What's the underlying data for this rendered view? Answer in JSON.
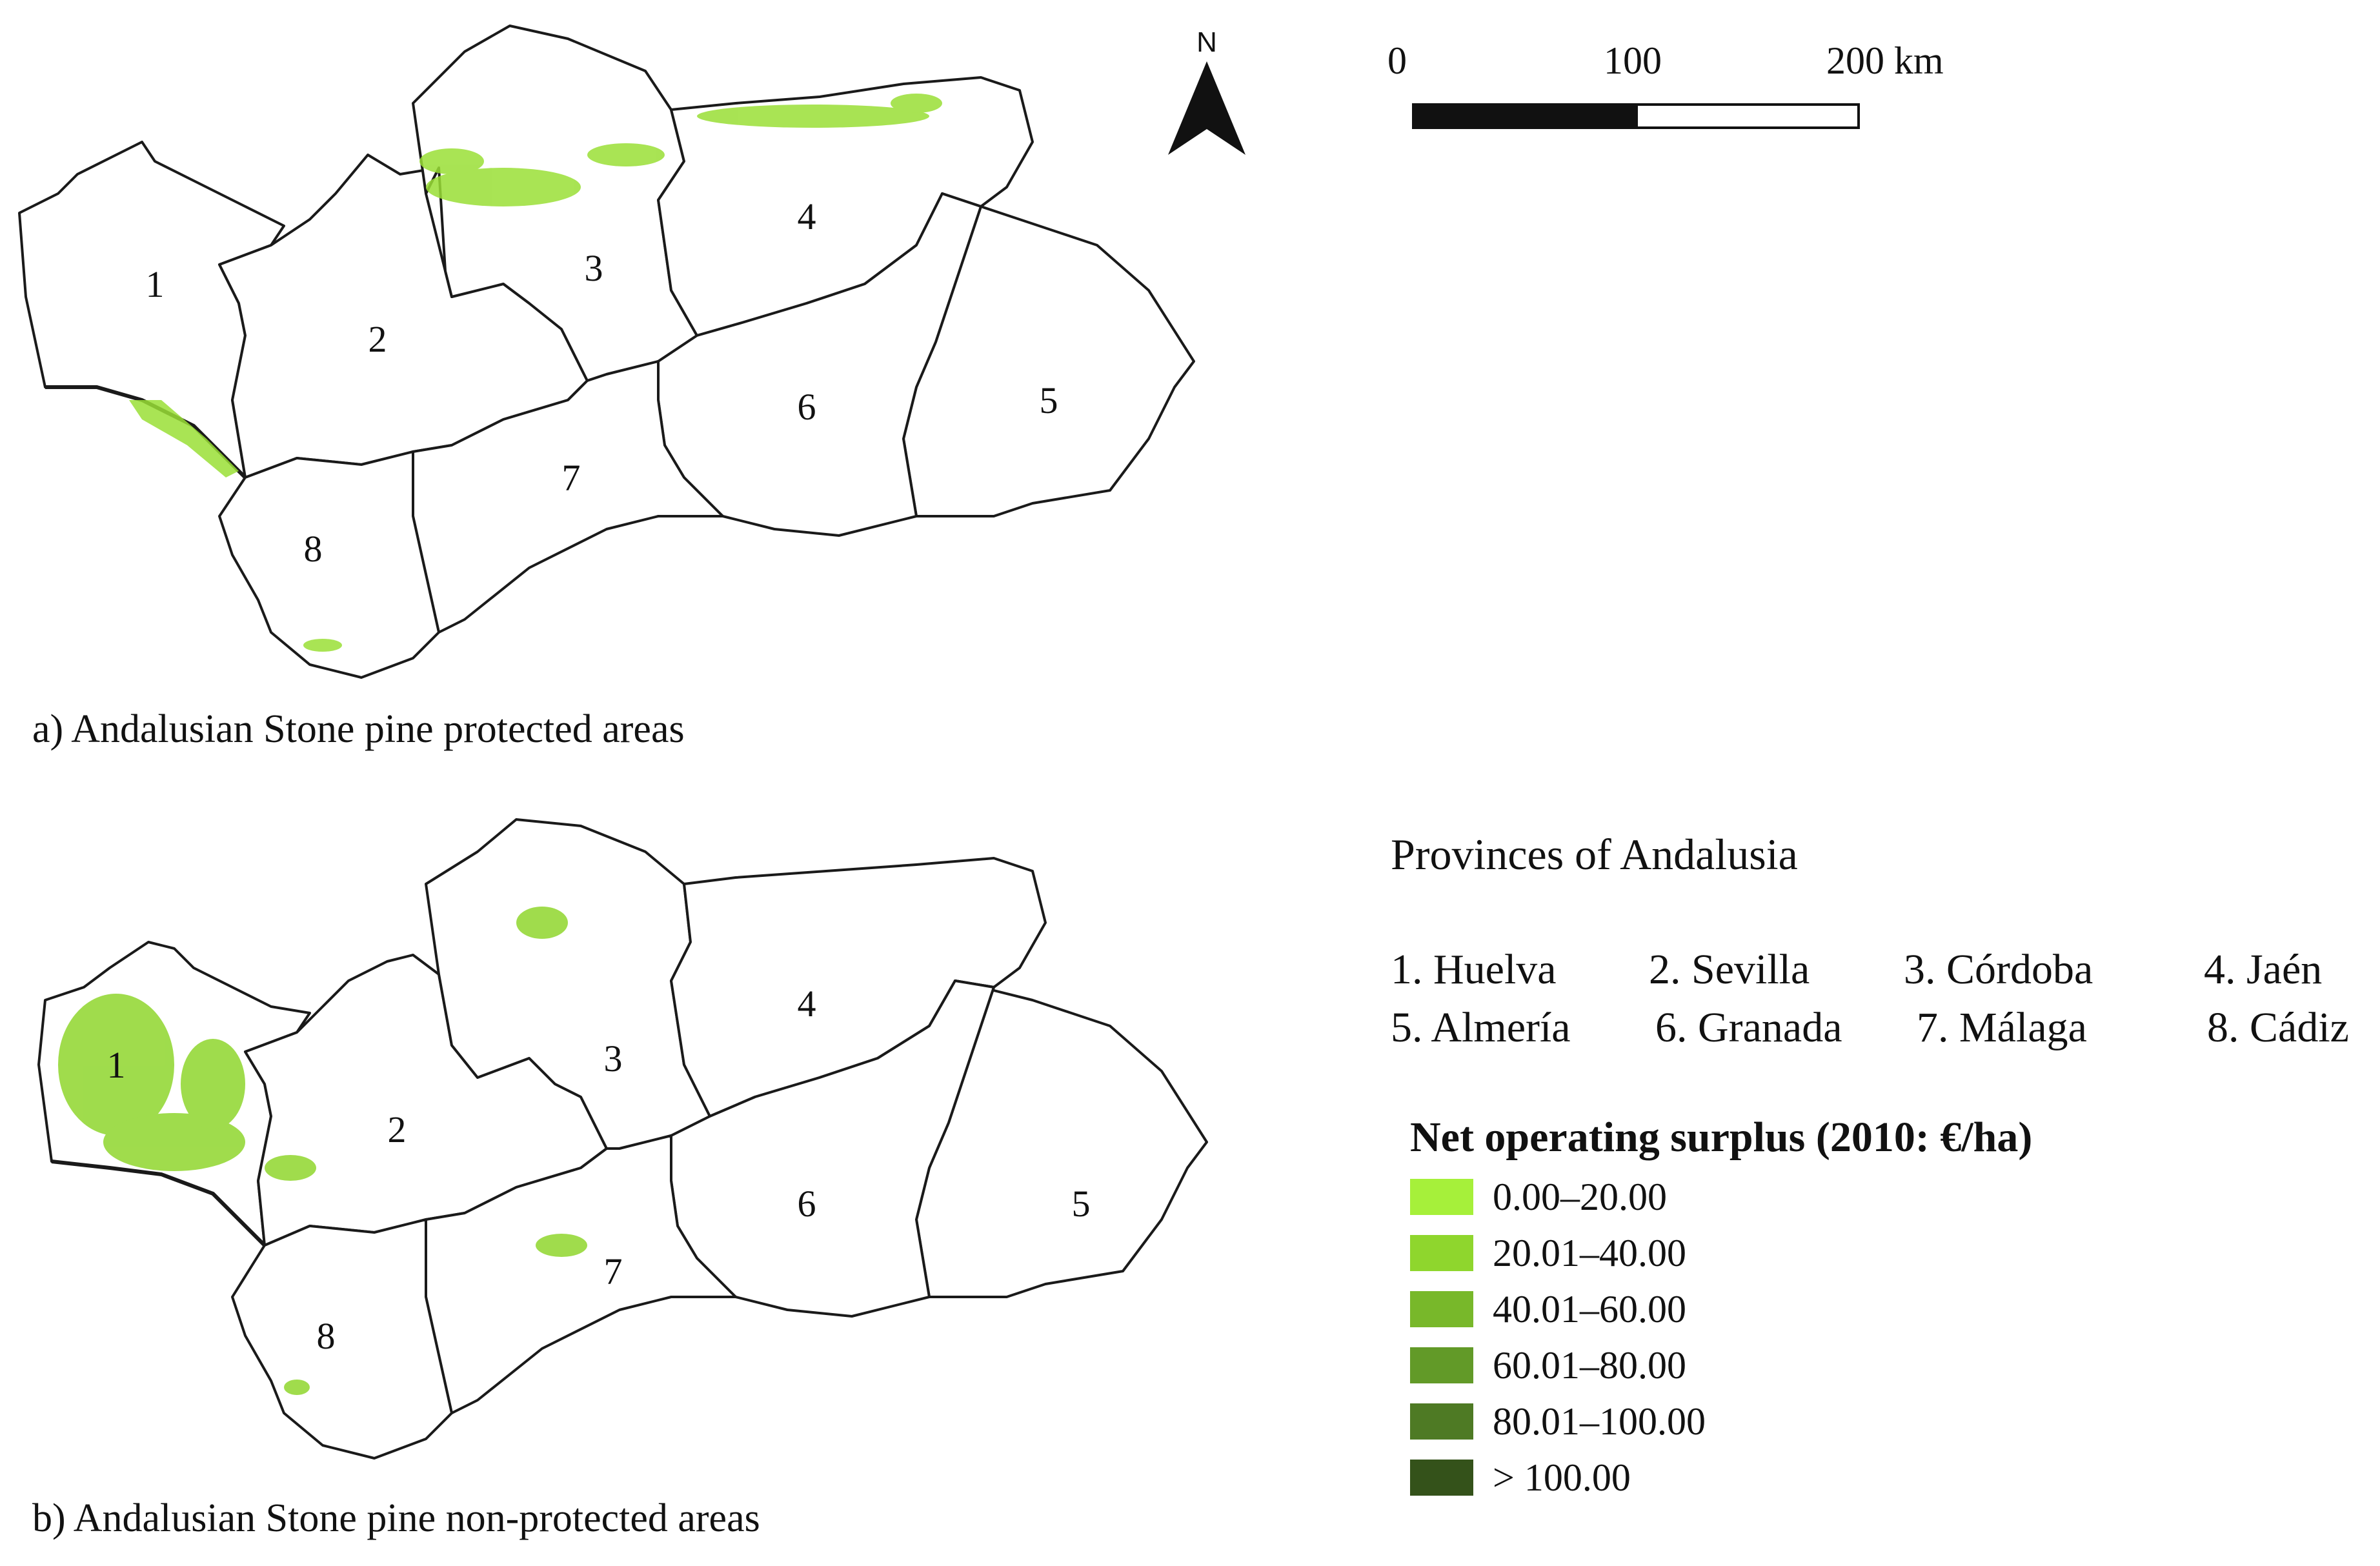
{
  "north_arrow": {
    "label": "N"
  },
  "scale": {
    "labels": [
      "0",
      "100",
      "200 km"
    ]
  },
  "map_a": {
    "caption": "a) Andalusian Stone pine protected areas",
    "province_numbers": [
      "1",
      "2",
      "3",
      "4",
      "5",
      "6",
      "7",
      "8"
    ]
  },
  "map_b": {
    "caption": "b) Andalusian Stone pine non-protected areas",
    "province_numbers": [
      "1",
      "2",
      "3",
      "4",
      "5",
      "6",
      "7",
      "8"
    ]
  },
  "provinces": {
    "title": "Provinces of Andalusia",
    "items": [
      "1. Huelva",
      "2. Sevilla",
      "3. Córdoba",
      "4. Jaén",
      "5. Almería",
      "6. Granada",
      "7. Málaga",
      "8. Cádiz"
    ]
  },
  "legend": {
    "title": "Net operating surplus (2010: €/ha)",
    "classes": [
      {
        "label": "0.00–20.00",
        "color": "#a6f03a"
      },
      {
        "label": "20.01–40.00",
        "color": "#8fd62d"
      },
      {
        "label": "40.01–60.00",
        "color": "#78b82a"
      },
      {
        "label": "60.01–80.00",
        "color": "#629a28"
      },
      {
        "label": "80.01–100.00",
        "color": "#4e7a24"
      },
      {
        "label": "> 100.00",
        "color": "#34521a"
      }
    ]
  }
}
